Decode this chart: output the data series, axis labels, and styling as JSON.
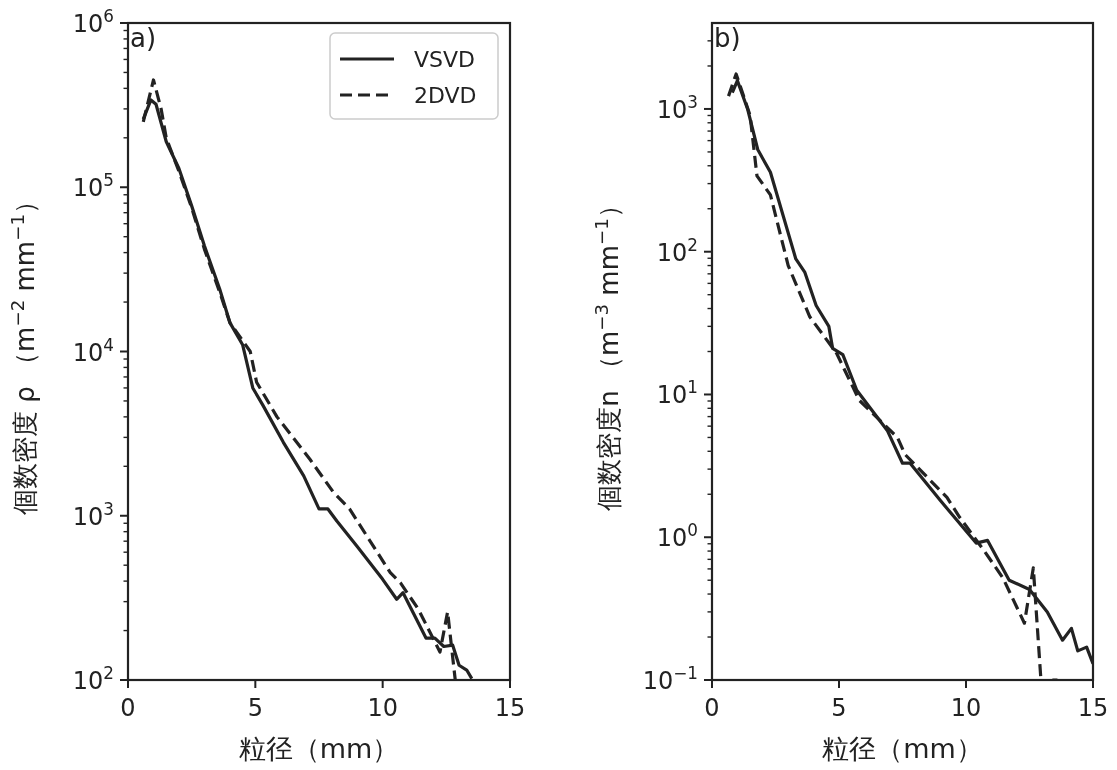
{
  "chart_data": [
    {
      "type": "line",
      "xlabel": "粒径（mm）",
      "ylabel": "個数密度 ρ （m$^{−2}$ mm$^{−1}$）",
      "annotations": [
        "a)"
      ],
      "log": "y",
      "legend": "top right",
      "grid": false,
      "xlim": [
        0,
        15
      ],
      "xticks": [
        0,
        5,
        10,
        15
      ],
      "ylim": [
        100,
        1000000
      ],
      "yticks": [
        {
          "value": 100,
          "label": "10$^{2}$"
        },
        {
          "value": 1000,
          "label": "10$^{3}$"
        },
        {
          "value": 10000,
          "label": "10$^{4}$"
        },
        {
          "value": 100000,
          "label": "10$^{5}$"
        },
        {
          "value": 1000000,
          "label": "10$^{6}$"
        }
      ],
      "series": [
        {
          "name": "VSVD",
          "color": "#222222",
          "line_style": "solid",
          "x": [
            0.6,
            0.9,
            1.1,
            1.5,
            2.0,
            2.5,
            3.0,
            3.6,
            4.0,
            4.5,
            4.9,
            5.3,
            6.1,
            6.9,
            7.5,
            7.85,
            8.2,
            9.0,
            10.0,
            10.55,
            10.8,
            11.7,
            12.05,
            12.4,
            12.75,
            13.0,
            13.3,
            13.5
          ],
          "values": [
            260000,
            340000,
            320000,
            190000,
            130000,
            77000,
            44000,
            24000,
            15000,
            11000,
            6000,
            4700,
            2800,
            1750,
            1100,
            1100,
            930,
            650,
            410,
            310,
            340,
            180,
            180,
            160,
            163,
            123,
            115,
            102
          ]
        },
        {
          "name": "2DVD",
          "color": "#222222",
          "line_style": "dashed",
          "x": [
            0.6,
            1.0,
            1.3,
            1.5,
            2.0,
            2.5,
            3.0,
            3.6,
            4.0,
            4.8,
            5.05,
            5.85,
            7.15,
            8.05,
            8.7,
            10.3,
            10.7,
            11.4,
            12.25,
            12.55,
            12.85
          ],
          "values": [
            250000,
            450000,
            300000,
            200000,
            125000,
            75000,
            42000,
            23000,
            15000,
            10000,
            6500,
            4000,
            2200,
            1400,
            1100,
            450,
            390,
            270,
            148,
            260,
            100
          ]
        }
      ]
    },
    {
      "type": "line",
      "xlabel": "粒径（mm）",
      "ylabel": "個数密度n （m$^{−3}$ mm$^{−1}$）",
      "annotations": [
        "b)"
      ],
      "log": "y",
      "grid": false,
      "xlim": [
        0,
        15
      ],
      "xticks": [
        0,
        5,
        10,
        15
      ],
      "ylim": [
        0.1,
        4000
      ],
      "yticks": [
        {
          "value": 0.1,
          "label": "10$^{−1}$"
        },
        {
          "value": 1,
          "label": "10$^{0}$"
        },
        {
          "value": 10,
          "label": "10$^{1}$"
        },
        {
          "value": 100,
          "label": "10$^{2}$"
        },
        {
          "value": 1000,
          "label": "10$^{3}$"
        }
      ],
      "series": [
        {
          "color": "#222222",
          "line_style": "solid",
          "x": [
            0.8,
            1.0,
            1.4,
            1.8,
            2.3,
            3.3,
            3.65,
            4.1,
            4.6,
            4.75,
            5.15,
            5.7,
            6.9,
            7.5,
            7.8,
            9.0,
            10.4,
            10.85,
            11.7,
            12.5,
            13.2,
            13.8,
            14.15,
            14.4,
            14.75,
            15.0
          ],
          "values": [
            1300,
            1580,
            1000,
            520,
            360,
            89,
            72,
            42,
            30,
            21,
            19,
            10.7,
            5.6,
            3.3,
            3.3,
            1.8,
            0.91,
            0.95,
            0.5,
            0.43,
            0.3,
            0.19,
            0.23,
            0.16,
            0.17,
            0.13
          ]
        },
        {
          "color": "#222222",
          "line_style": "dashed",
          "x": [
            0.65,
            0.95,
            1.5,
            1.77,
            2.3,
            3.0,
            3.85,
            4.9,
            5.8,
            7.3,
            7.6,
            9.25,
            9.75,
            10.7,
            11.45,
            12.3,
            12.65,
            12.95,
            13.2,
            13.4,
            13.6
          ],
          "values": [
            1230,
            1760,
            900,
            340,
            250,
            80,
            35,
            19.5,
            9.1,
            5.0,
            3.8,
            1.9,
            1.38,
            0.81,
            0.52,
            0.25,
            0.61,
            0.1,
            null,
            0.1,
            0.1
          ]
        }
      ]
    }
  ]
}
